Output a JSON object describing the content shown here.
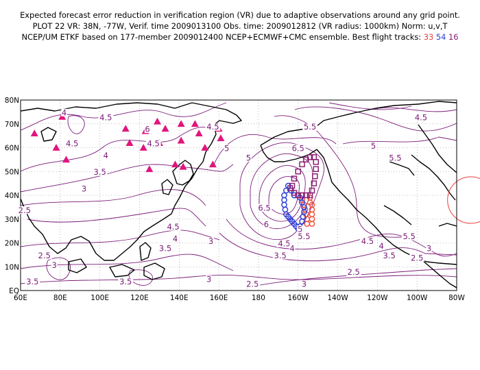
{
  "title": {
    "line1": "Expected forecast error reduction in verification region (VR) due to adaptive observations around any grid point.",
    "line2": "PLOT 22 VR: 38N, -77W, Verif. time 2009013100 Obs. time: 2009012812 (VR radius: 1000km) Norm: u,v,T",
    "line3_prefix": "NCEP/UM ETKF based on 177-member 2009012400 NCEP+ECMWF+CMC ensemble. Best flight tracks:",
    "track1": "33",
    "track2": "54",
    "track3": "16"
  },
  "colors": {
    "contour": "#7a1a78",
    "coast": "#000000",
    "triangle": "#e0157d",
    "track_red": "#f0503a",
    "track_blue": "#3040d8",
    "track_purple": "#8a1f6f",
    "vr_circle": "#e8423c"
  },
  "map": {
    "lon_range": [
      60,
      280
    ],
    "lat_range": [
      0,
      80
    ],
    "lat_ticks": [
      "80N",
      "70N",
      "60N",
      "50N",
      "40N",
      "30N",
      "20N",
      "10N",
      "EQ"
    ],
    "lon_ticks": [
      "60E",
      "80E",
      "100E",
      "120E",
      "140E",
      "160E",
      "180",
      "160W",
      "140W",
      "120W",
      "100W",
      "80W"
    ],
    "grid": "dotted",
    "verification_region": {
      "lat": 38,
      "lon": -77
    }
  },
  "contour_labels": [
    {
      "text": "4.5",
      "lon": 103,
      "lat": 72
    },
    {
      "text": "4",
      "lon": 82,
      "lat": 74
    },
    {
      "text": "4.5",
      "lon": 86,
      "lat": 61
    },
    {
      "text": "4",
      "lon": 103,
      "lat": 56
    },
    {
      "text": "3.5",
      "lon": 100,
      "lat": 49
    },
    {
      "text": "3",
      "lon": 92,
      "lat": 42
    },
    {
      "text": "2.5",
      "lon": 62,
      "lat": 33
    },
    {
      "text": "6",
      "lon": 124,
      "lat": 67
    },
    {
      "text": "4.5",
      "lon": 127,
      "lat": 61
    },
    {
      "text": "4.5",
      "lon": 157,
      "lat": 68
    },
    {
      "text": "5",
      "lon": 164,
      "lat": 59
    },
    {
      "text": "5",
      "lon": 175,
      "lat": 55
    },
    {
      "text": "5.5",
      "lon": 206,
      "lat": 68
    },
    {
      "text": "6.5",
      "lon": 200,
      "lat": 59
    },
    {
      "text": "4.5",
      "lon": 262,
      "lat": 72
    },
    {
      "text": "5",
      "lon": 238,
      "lat": 60
    },
    {
      "text": "5.5",
      "lon": 249,
      "lat": 55
    },
    {
      "text": "6.5",
      "lon": 183,
      "lat": 34
    },
    {
      "text": "6",
      "lon": 184,
      "lat": 27
    },
    {
      "text": "5",
      "lon": 201,
      "lat": 25
    },
    {
      "text": "5.5",
      "lon": 203,
      "lat": 22
    },
    {
      "text": "4.5",
      "lon": 137,
      "lat": 26
    },
    {
      "text": "4",
      "lon": 138,
      "lat": 21
    },
    {
      "text": "3.5",
      "lon": 133,
      "lat": 17
    },
    {
      "text": "3",
      "lon": 156,
      "lat": 20
    },
    {
      "text": "4.5",
      "lon": 193,
      "lat": 19
    },
    {
      "text": "4",
      "lon": 197,
      "lat": 17
    },
    {
      "text": "3.5",
      "lon": 191,
      "lat": 14
    },
    {
      "text": "4.5",
      "lon": 235,
      "lat": 20
    },
    {
      "text": "5.5",
      "lon": 256,
      "lat": 22
    },
    {
      "text": "4",
      "lon": 242,
      "lat": 18
    },
    {
      "text": "3.5",
      "lon": 246,
      "lat": 14
    },
    {
      "text": "3",
      "lon": 266,
      "lat": 17
    },
    {
      "text": "2.5",
      "lon": 260,
      "lat": 13
    },
    {
      "text": "2.5",
      "lon": 228,
      "lat": 7
    },
    {
      "text": "2.5",
      "lon": 72,
      "lat": 14
    },
    {
      "text": "3",
      "lon": 77,
      "lat": 10
    },
    {
      "text": "3.5",
      "lon": 66,
      "lat": 3
    },
    {
      "text": "3.5",
      "lon": 113,
      "lat": 3
    },
    {
      "text": "3",
      "lon": 155,
      "lat": 4
    },
    {
      "text": "2.5",
      "lon": 177,
      "lat": 2
    },
    {
      "text": "3",
      "lon": 203,
      "lat": 2
    }
  ],
  "observation_sites": [
    {
      "lon": 67,
      "lat": 66
    },
    {
      "lon": 81,
      "lat": 73
    },
    {
      "lon": 78,
      "lat": 60
    },
    {
      "lon": 83,
      "lat": 55
    },
    {
      "lon": 113,
      "lat": 68
    },
    {
      "lon": 115,
      "lat": 62
    },
    {
      "lon": 123,
      "lat": 67
    },
    {
      "lon": 122,
      "lat": 60
    },
    {
      "lon": 129,
      "lat": 71
    },
    {
      "lon": 133,
      "lat": 68
    },
    {
      "lon": 130,
      "lat": 62
    },
    {
      "lon": 141,
      "lat": 70
    },
    {
      "lon": 148,
      "lat": 70
    },
    {
      "lon": 150,
      "lat": 66
    },
    {
      "lon": 153,
      "lat": 60
    },
    {
      "lon": 141,
      "lat": 63
    },
    {
      "lon": 160,
      "lat": 68
    },
    {
      "lon": 161,
      "lat": 64
    },
    {
      "lon": 138,
      "lat": 53
    },
    {
      "lon": 142,
      "lat": 52
    },
    {
      "lon": 125,
      "lat": 51
    },
    {
      "lon": 157,
      "lat": 53
    }
  ],
  "flight_tracks": [
    {
      "id": "33",
      "color": "#f0503a",
      "points": [
        [
          -160,
          40
        ],
        [
          -158,
          38
        ],
        [
          -157,
          36
        ],
        [
          -156.5,
          34
        ],
        [
          -156,
          32
        ],
        [
          -155.5,
          30
        ],
        [
          -155.5,
          28
        ],
        [
          -154,
          39
        ],
        [
          -153,
          36
        ],
        [
          -153,
          34
        ],
        [
          -153,
          32
        ],
        [
          -153,
          30
        ],
        [
          -153,
          28
        ],
        [
          -154,
          37
        ]
      ]
    },
    {
      "id": "54",
      "color": "#3040d8",
      "points": [
        [
          -165,
          44
        ],
        [
          -166,
          42
        ],
        [
          -167,
          40
        ],
        [
          -167,
          38
        ],
        [
          -167,
          36
        ],
        [
          -166.5,
          34
        ],
        [
          -166,
          32
        ],
        [
          -165,
          31
        ],
        [
          -164,
          30
        ],
        [
          -163,
          29
        ],
        [
          -162,
          28
        ],
        [
          -161,
          27
        ],
        [
          -160,
          26
        ],
        [
          -159,
          27
        ],
        [
          -158,
          29
        ],
        [
          -157.5,
          31
        ],
        [
          -157,
          33
        ],
        [
          -157,
          35
        ],
        [
          -158,
          37
        ],
        [
          -159,
          39
        ],
        [
          -162,
          40
        ],
        [
          -163.5,
          42
        ]
      ]
    },
    {
      "id": "16",
      "color": "#8a1f6f",
      "points": [
        [
          -163,
          44
        ],
        [
          -162,
          47
        ],
        [
          -160,
          50
        ],
        [
          -158,
          53
        ],
        [
          -156,
          55
        ],
        [
          -154,
          56
        ],
        [
          -152,
          56
        ],
        [
          -151,
          54
        ],
        [
          -151,
          51
        ],
        [
          -151.5,
          48
        ],
        [
          -152,
          45
        ],
        [
          -153,
          42
        ],
        [
          -154,
          40
        ],
        [
          -156,
          40
        ],
        [
          -158,
          40
        ],
        [
          -160,
          40
        ],
        [
          -162,
          41
        ],
        [
          -164,
          43
        ]
      ]
    }
  ]
}
